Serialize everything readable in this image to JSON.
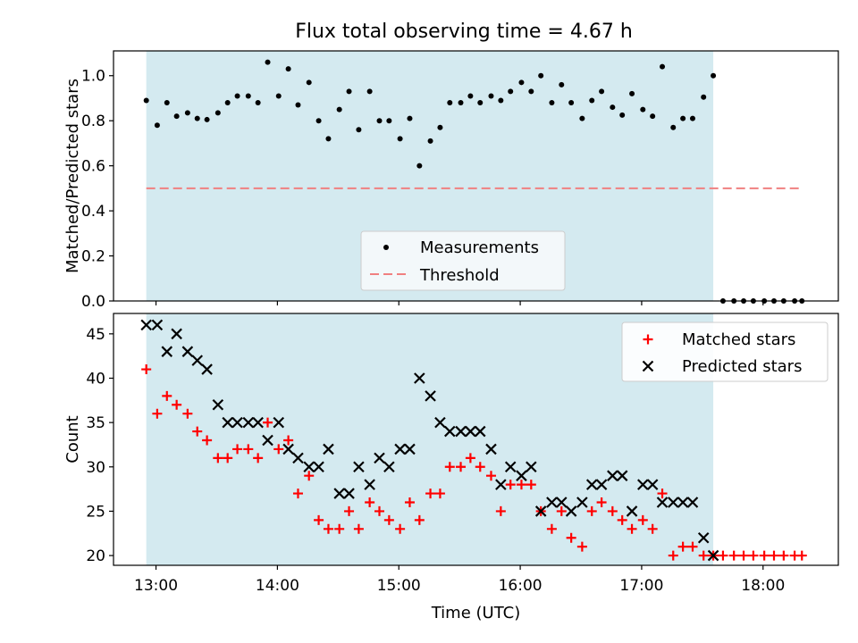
{
  "title": "Flux total observing time = 4.67 h",
  "colors": {
    "span": "#d4eaf0",
    "measurement": "#000000",
    "threshold": "#f08080",
    "matched": "#ff0000",
    "predicted": "#000000"
  },
  "chart_data": [
    {
      "type": "scatter",
      "ylabel": "Matched/Predicted stars",
      "xlabel": "",
      "xlim": [
        12.65,
        18.62
      ],
      "ylim": [
        0.0,
        1.11
      ],
      "yticks": [
        0.0,
        0.2,
        0.4,
        0.6,
        0.8,
        1.0
      ],
      "ytick_labels": [
        "0.0",
        "0.2",
        "0.4",
        "0.6",
        "0.8",
        "1.0"
      ],
      "shaded_span": [
        12.92,
        17.59
      ],
      "legend": {
        "position": "lower center",
        "entries": [
          "Measurements",
          "Threshold"
        ]
      },
      "threshold": {
        "name": "Threshold",
        "y": 0.5,
        "x": [
          12.92,
          18.32
        ]
      },
      "series": [
        {
          "name": "Measurements",
          "marker": "dot",
          "x": [
            12.92,
            13.01,
            13.09,
            13.17,
            13.26,
            13.34,
            13.42,
            13.51,
            13.59,
            13.67,
            13.76,
            13.84,
            13.92,
            14.01,
            14.09,
            14.17,
            14.26,
            14.34,
            14.42,
            14.51,
            14.59,
            14.67,
            14.76,
            14.84,
            14.92,
            15.01,
            15.09,
            15.17,
            15.26,
            15.34,
            15.42,
            15.51,
            15.59,
            15.67,
            15.76,
            15.84,
            15.92,
            16.01,
            16.09,
            16.17,
            16.26,
            16.34,
            16.42,
            16.51,
            16.59,
            16.67,
            16.76,
            16.84,
            16.92,
            17.01,
            17.09,
            17.17,
            17.26,
            17.34,
            17.42,
            17.51,
            17.59,
            17.67,
            17.76,
            17.84,
            17.92,
            18.01,
            18.09,
            18.17,
            18.26,
            18.32
          ],
          "y": [
            0.89,
            0.78,
            0.88,
            0.82,
            0.835,
            0.81,
            0.805,
            0.835,
            0.88,
            0.91,
            0.91,
            0.88,
            1.06,
            0.91,
            1.03,
            0.87,
            0.97,
            0.8,
            0.72,
            0.85,
            0.93,
            0.76,
            0.93,
            0.8,
            0.8,
            0.72,
            0.81,
            0.6,
            0.71,
            0.77,
            0.88,
            0.88,
            0.91,
            0.88,
            0.91,
            0.89,
            0.93,
            0.97,
            0.93,
            1.0,
            0.88,
            0.96,
            0.88,
            0.81,
            0.89,
            0.93,
            0.86,
            0.825,
            0.92,
            0.85,
            0.82,
            1.04,
            0.77,
            0.81,
            0.81,
            0.905,
            1.0,
            0,
            0,
            0,
            0,
            0,
            0,
            0,
            0,
            0
          ]
        }
      ]
    },
    {
      "type": "scatter",
      "ylabel": "Count",
      "xlabel": "Time (UTC)",
      "xlim": [
        12.65,
        18.62
      ],
      "ylim": [
        18.9,
        47.3
      ],
      "yticks": [
        20,
        25,
        30,
        35,
        40,
        45
      ],
      "ytick_labels": [
        "20",
        "25",
        "30",
        "35",
        "40",
        "45"
      ],
      "xticks": [
        13,
        14,
        15,
        16,
        17,
        18
      ],
      "xtick_labels": [
        "13:00",
        "14:00",
        "15:00",
        "16:00",
        "17:00",
        "18:00"
      ],
      "shaded_span": [
        12.92,
        17.59
      ],
      "legend": {
        "position": "upper right",
        "entries": [
          "Matched stars",
          "Predicted stars"
        ]
      },
      "series": [
        {
          "name": "Matched stars",
          "marker": "plus",
          "x": [
            12.92,
            13.01,
            13.09,
            13.17,
            13.26,
            13.34,
            13.42,
            13.51,
            13.59,
            13.67,
            13.76,
            13.84,
            13.92,
            14.01,
            14.09,
            14.17,
            14.26,
            14.34,
            14.42,
            14.51,
            14.59,
            14.67,
            14.76,
            14.84,
            14.92,
            15.01,
            15.09,
            15.17,
            15.26,
            15.34,
            15.42,
            15.51,
            15.59,
            15.67,
            15.76,
            15.84,
            15.92,
            16.01,
            16.09,
            16.17,
            16.26,
            16.34,
            16.42,
            16.51,
            16.59,
            16.67,
            16.76,
            16.84,
            16.92,
            17.01,
            17.09,
            17.17,
            17.26,
            17.34,
            17.42,
            17.51,
            17.59,
            17.67,
            17.76,
            17.84,
            17.92,
            18.01,
            18.09,
            18.17,
            18.26,
            18.32
          ],
          "y": [
            41,
            36,
            38,
            37,
            36,
            34,
            33,
            31,
            31,
            32,
            32,
            31,
            35,
            32,
            33,
            27,
            29,
            24,
            23,
            23,
            25,
            23,
            26,
            25,
            24,
            23,
            26,
            24,
            27,
            27,
            30,
            30,
            31,
            30,
            29,
            25,
            28,
            28,
            28,
            25,
            23,
            25,
            22,
            21,
            25,
            26,
            25,
            24,
            23,
            24,
            23,
            27,
            20,
            21,
            21,
            20,
            20,
            20,
            20,
            20,
            20,
            20,
            20,
            20,
            20,
            20
          ]
        },
        {
          "name": "Predicted stars",
          "marker": "x",
          "x": [
            12.92,
            13.01,
            13.09,
            13.17,
            13.26,
            13.34,
            13.42,
            13.51,
            13.59,
            13.67,
            13.76,
            13.84,
            13.92,
            14.01,
            14.09,
            14.17,
            14.26,
            14.34,
            14.42,
            14.51,
            14.59,
            14.67,
            14.76,
            14.84,
            14.92,
            15.01,
            15.09,
            15.17,
            15.26,
            15.34,
            15.42,
            15.51,
            15.59,
            15.67,
            15.76,
            15.84,
            15.92,
            16.01,
            16.09,
            16.17,
            16.26,
            16.34,
            16.42,
            16.51,
            16.59,
            16.67,
            16.76,
            16.84,
            16.92,
            17.01,
            17.09,
            17.17,
            17.26,
            17.34,
            17.42,
            17.51,
            17.59
          ],
          "y": [
            46,
            46,
            43,
            45,
            43,
            42,
            41,
            37,
            35,
            35,
            35,
            35,
            33,
            35,
            32,
            31,
            30,
            30,
            32,
            27,
            27,
            30,
            28,
            31,
            30,
            32,
            32,
            40,
            38,
            35,
            34,
            34,
            34,
            34,
            32,
            28,
            30,
            29,
            30,
            25,
            26,
            26,
            25,
            26,
            28,
            28,
            29,
            29,
            25,
            28,
            28,
            26,
            26,
            26,
            26,
            22,
            20
          ]
        }
      ]
    }
  ]
}
